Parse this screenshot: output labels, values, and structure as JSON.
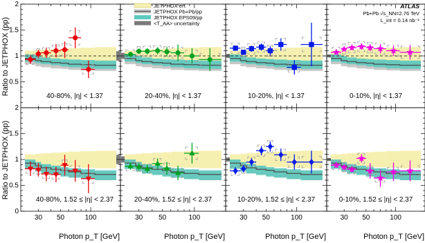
{
  "chart_data": {
    "type": "scatter",
    "ylabel": "Ratio to JETPHOX (pp)",
    "xlabel": "Photon p_T [GeV]",
    "x_tick_labels": [
      "30",
      "50",
      "100"
    ],
    "y_tick_labels": [
      "0",
      "0.5",
      "1",
      "1.5",
      "2"
    ],
    "x_range": [
      22,
      180
    ],
    "y_range": [
      0,
      2
    ],
    "x_scale": "log",
    "y_scale": "linear",
    "legend": {
      "placement": "top",
      "entries": [
        {
          "label": "JETPHOX err.",
          "color": "#f5f0b0",
          "kind": "box"
        },
        {
          "label": "JETPHOX Pb+Pb/pp",
          "color": "#5a5a5a",
          "kind": "line"
        },
        {
          "label": "JETPHOX EPS09/pp",
          "color": "#5ec9bd",
          "kind": "box"
        },
        {
          "label": "<T_AA> uncertainty",
          "color": "#7a7a7a",
          "kind": "box"
        }
      ]
    },
    "atlas_label": {
      "title": "ATLAS",
      "line1": "Pb+Pb  √s_NN=2.76 TeV",
      "line2": "L_int = 0.14 nb⁻¹"
    },
    "bins": [
      {
        "lo": 22,
        "hi": 28,
        "center": 25
      },
      {
        "lo": 28,
        "hi": 32,
        "center": 30
      },
      {
        "lo": 32,
        "hi": 40,
        "center": 36
      },
      {
        "lo": 40,
        "hi": 50,
        "center": 45
      },
      {
        "lo": 50,
        "hi": 60,
        "center": 55
      },
      {
        "lo": 60,
        "hi": 80,
        "center": 70
      },
      {
        "lo": 80,
        "hi": 110,
        "center": 95
      },
      {
        "lo": 110,
        "hi": 180,
        "center": 140
      }
    ],
    "theory": {
      "jetphox_err_band": [
        0.1,
        0.11,
        0.12,
        0.13,
        0.14,
        0.15,
        0.16,
        0.17
      ],
      "pbpb_over_pp": {
        "central": [
          0.95,
          0.91,
          0.89,
          0.87,
          0.86,
          0.84,
          0.83,
          0.82
        ],
        "forward": [
          0.93,
          0.88,
          0.84,
          0.81,
          0.79,
          0.76,
          0.73,
          0.71
        ]
      },
      "eps09_over_pp": {
        "central": {
          "low": [
            0.89,
            0.86,
            0.84,
            0.82,
            0.8,
            0.78,
            0.76,
            0.75
          ],
          "high": [
            1.03,
            1.0,
            0.97,
            0.95,
            0.94,
            0.93,
            0.92,
            0.91
          ]
        },
        "forward": {
          "low": [
            0.82,
            0.77,
            0.73,
            0.7,
            0.67,
            0.65,
            0.62,
            0.6
          ],
          "high": [
            1.0,
            0.95,
            0.91,
            0.88,
            0.85,
            0.83,
            0.81,
            0.79
          ]
        }
      }
    },
    "panels": [
      {
        "label": "40-80%, |η| < 1.37",
        "color": "#e8000b",
        "marker": "circle",
        "taa_unc": 0.09,
        "taa_side": "left",
        "points": [
          {
            "x": 25,
            "xlo": 22,
            "xhi": 28,
            "y": 0.93,
            "err": 0.08,
            "sys": 0.1
          },
          {
            "x": 30,
            "xlo": 28,
            "xhi": 32,
            "y": 1.04,
            "err": 0.08,
            "sys": 0.1
          },
          {
            "x": 36,
            "xlo": 32,
            "xhi": 40,
            "y": 1.06,
            "err": 0.1,
            "sys": 0.1
          },
          {
            "x": 45,
            "xlo": 40,
            "xhi": 50,
            "y": 1.1,
            "err": 0.13,
            "sys": 0.11
          },
          {
            "x": 55,
            "xlo": 50,
            "xhi": 60,
            "y": 1.12,
            "err": 0.16,
            "sys": 0.12
          },
          {
            "x": 70,
            "xlo": 60,
            "xhi": 80,
            "y": 1.35,
            "err": 0.2,
            "sys": 0.14
          },
          {
            "x": 95,
            "xlo": 80,
            "xhi": 110,
            "y": 0.74,
            "err": 0.17,
            "sys": 0.09
          }
        ]
      },
      {
        "label": "20-40%, |η| < 1.37",
        "color": "#00a020",
        "marker": "circle",
        "taa_unc": 0.06,
        "taa_side": "right",
        "points": [
          {
            "x": 25,
            "xlo": 22,
            "xhi": 28,
            "y": 1.03,
            "err": 0.05,
            "sys": 0.09
          },
          {
            "x": 30,
            "xlo": 28,
            "xhi": 32,
            "y": 1.09,
            "err": 0.05,
            "sys": 0.09
          },
          {
            "x": 36,
            "xlo": 32,
            "xhi": 40,
            "y": 1.09,
            "err": 0.06,
            "sys": 0.1
          },
          {
            "x": 45,
            "xlo": 40,
            "xhi": 50,
            "y": 1.1,
            "err": 0.07,
            "sys": 0.1
          },
          {
            "x": 55,
            "xlo": 50,
            "xhi": 60,
            "y": 1.08,
            "err": 0.09,
            "sys": 0.1
          },
          {
            "x": 70,
            "xlo": 60,
            "xhi": 80,
            "y": 1.06,
            "err": 0.16,
            "sys": 0.11
          },
          {
            "x": 95,
            "xlo": 80,
            "xhi": 110,
            "y": 1.0,
            "err": 0.15,
            "sys": 0.11
          },
          {
            "x": 140,
            "xlo": 110,
            "xhi": 180,
            "y": 0.93,
            "err": 0.22,
            "sys": 0.12
          }
        ]
      },
      {
        "label": "10-20%, |η| < 1.37",
        "color": "#0018e8",
        "marker": "square",
        "taa_unc": 0.04,
        "taa_side": "right",
        "points": [
          {
            "x": 25,
            "xlo": 22,
            "xhi": 28,
            "y": 1.15,
            "err": 0.05,
            "sys": 0.1
          },
          {
            "x": 30,
            "xlo": 28,
            "xhi": 32,
            "y": 1.07,
            "err": 0.05,
            "sys": 0.1
          },
          {
            "x": 36,
            "xlo": 32,
            "xhi": 40,
            "y": 1.14,
            "err": 0.06,
            "sys": 0.1
          },
          {
            "x": 45,
            "xlo": 40,
            "xhi": 50,
            "y": 1.17,
            "err": 0.07,
            "sys": 0.1
          },
          {
            "x": 55,
            "xlo": 50,
            "xhi": 60,
            "y": 1.1,
            "err": 0.09,
            "sys": 0.11
          },
          {
            "x": 70,
            "xlo": 60,
            "xhi": 80,
            "y": 1.22,
            "err": 0.12,
            "sys": 0.12
          },
          {
            "x": 95,
            "xlo": 80,
            "xhi": 110,
            "y": 0.78,
            "err": 0.14,
            "sys": 0.09
          },
          {
            "x": 140,
            "xlo": 110,
            "xhi": 180,
            "y": 1.22,
            "err": 0.42,
            "sys": 0.14
          }
        ]
      },
      {
        "label": "0-10%, |η| < 1.37",
        "color": "#ee00dd",
        "marker": "star",
        "taa_unc": 0.03,
        "taa_side": "right",
        "points": [
          {
            "x": 25,
            "xlo": 22,
            "xhi": 28,
            "y": 1.07,
            "err": 0.04,
            "sys": 0.1
          },
          {
            "x": 30,
            "xlo": 28,
            "xhi": 32,
            "y": 1.13,
            "err": 0.04,
            "sys": 0.1
          },
          {
            "x": 36,
            "xlo": 32,
            "xhi": 40,
            "y": 1.16,
            "err": 0.05,
            "sys": 0.1
          },
          {
            "x": 45,
            "xlo": 40,
            "xhi": 50,
            "y": 1.18,
            "err": 0.06,
            "sys": 0.1
          },
          {
            "x": 55,
            "xlo": 50,
            "xhi": 60,
            "y": 1.16,
            "err": 0.07,
            "sys": 0.1
          },
          {
            "x": 70,
            "xlo": 60,
            "xhi": 80,
            "y": 1.14,
            "err": 0.09,
            "sys": 0.11
          },
          {
            "x": 95,
            "xlo": 80,
            "xhi": 110,
            "y": 1.1,
            "err": 0.1,
            "sys": 0.11
          },
          {
            "x": 140,
            "xlo": 110,
            "xhi": 180,
            "y": 1.07,
            "err": 0.14,
            "sys": 0.12
          }
        ]
      },
      {
        "label": "40-80%, 1.52 ≤ |η| < 2.37",
        "color": "#e8000b",
        "marker": "triangle-down",
        "taa_unc": 0.09,
        "taa_side": "left",
        "points": [
          {
            "x": 25,
            "xlo": 22,
            "xhi": 28,
            "y": 0.82,
            "err": 0.14,
            "sys": 0.09
          },
          {
            "x": 30,
            "xlo": 28,
            "xhi": 32,
            "y": 0.8,
            "err": 0.13,
            "sys": 0.09
          },
          {
            "x": 36,
            "xlo": 32,
            "xhi": 40,
            "y": 0.72,
            "err": 0.14,
            "sys": 0.09
          },
          {
            "x": 45,
            "xlo": 40,
            "xhi": 50,
            "y": 0.71,
            "err": 0.15,
            "sys": 0.09
          },
          {
            "x": 55,
            "xlo": 50,
            "xhi": 60,
            "y": 0.89,
            "err": 0.2,
            "sys": 0.1
          },
          {
            "x": 70,
            "xlo": 60,
            "xhi": 80,
            "y": 0.78,
            "err": 0.21,
            "sys": 0.1
          },
          {
            "x": 95,
            "xlo": 80,
            "xhi": 110,
            "y": 0.63,
            "err": 0.28,
            "sys": 0.09
          }
        ]
      },
      {
        "label": "20-40%, 1.52 ≤ |η| < 2.37",
        "color": "#00a020",
        "marker": "triangle-up",
        "taa_unc": 0.06,
        "taa_side": "right",
        "points": [
          {
            "x": 25,
            "xlo": 22,
            "xhi": 28,
            "y": 0.87,
            "err": 0.07,
            "sys": 0.09
          },
          {
            "x": 30,
            "xlo": 28,
            "xhi": 32,
            "y": 0.86,
            "err": 0.07,
            "sys": 0.09
          },
          {
            "x": 36,
            "xlo": 32,
            "xhi": 40,
            "y": 0.82,
            "err": 0.08,
            "sys": 0.09
          },
          {
            "x": 45,
            "xlo": 40,
            "xhi": 50,
            "y": 0.92,
            "err": 0.1,
            "sys": 0.1
          },
          {
            "x": 55,
            "xlo": 50,
            "xhi": 60,
            "y": 0.83,
            "err": 0.12,
            "sys": 0.1
          },
          {
            "x": 70,
            "xlo": 60,
            "xhi": 80,
            "y": 0.74,
            "err": 0.14,
            "sys": 0.09
          },
          {
            "x": 95,
            "xlo": 80,
            "xhi": 110,
            "y": 1.12,
            "err": 0.2,
            "sys": 0.12
          }
        ]
      },
      {
        "label": "10-20%, 1.52 ≤ |η| < 2.37",
        "color": "#0018e8",
        "marker": "diamond",
        "taa_unc": 0.04,
        "taa_side": "right",
        "points": [
          {
            "x": 25,
            "xlo": 22,
            "xhi": 28,
            "y": 0.78,
            "err": 0.07,
            "sys": 0.09
          },
          {
            "x": 30,
            "xlo": 28,
            "xhi": 32,
            "y": 0.82,
            "err": 0.07,
            "sys": 0.09
          },
          {
            "x": 36,
            "xlo": 32,
            "xhi": 40,
            "y": 0.95,
            "err": 0.08,
            "sys": 0.1
          },
          {
            "x": 45,
            "xlo": 40,
            "xhi": 50,
            "y": 1.17,
            "err": 0.09,
            "sys": 0.11
          },
          {
            "x": 55,
            "xlo": 50,
            "xhi": 60,
            "y": 1.25,
            "err": 0.1,
            "sys": 0.12
          },
          {
            "x": 70,
            "xlo": 60,
            "xhi": 80,
            "y": 1.09,
            "err": 0.12,
            "sys": 0.11
          },
          {
            "x": 95,
            "xlo": 80,
            "xhi": 110,
            "y": 0.95,
            "err": 0.15,
            "sys": 0.1
          },
          {
            "x": 140,
            "xlo": 110,
            "xhi": 180,
            "y": 0.95,
            "err": 0.22,
            "sys": 0.11
          }
        ]
      },
      {
        "label": "0-10%, 1.52 ≤ |η| < 2.37",
        "color": "#ee00dd",
        "marker": "star",
        "taa_unc": 0.03,
        "taa_side": "right",
        "points": [
          {
            "x": 25,
            "xlo": 22,
            "xhi": 28,
            "y": 0.89,
            "err": 0.05,
            "sys": 0.09
          },
          {
            "x": 30,
            "xlo": 28,
            "xhi": 32,
            "y": 0.85,
            "err": 0.05,
            "sys": 0.09
          },
          {
            "x": 36,
            "xlo": 32,
            "xhi": 40,
            "y": 0.81,
            "err": 0.06,
            "sys": 0.09
          },
          {
            "x": 45,
            "xlo": 40,
            "xhi": 50,
            "y": 1.02,
            "err": 0.08,
            "sys": 0.1
          },
          {
            "x": 55,
            "xlo": 50,
            "xhi": 60,
            "y": 0.78,
            "err": 0.15,
            "sys": 0.09
          },
          {
            "x": 70,
            "xlo": 60,
            "xhi": 80,
            "y": 0.64,
            "err": 0.17,
            "sys": 0.08
          },
          {
            "x": 95,
            "xlo": 80,
            "xhi": 110,
            "y": 0.76,
            "err": 0.18,
            "sys": 0.09
          },
          {
            "x": 140,
            "xlo": 110,
            "xhi": 180,
            "y": 0.78,
            "err": 0.2,
            "sys": 0.1
          }
        ]
      }
    ]
  }
}
